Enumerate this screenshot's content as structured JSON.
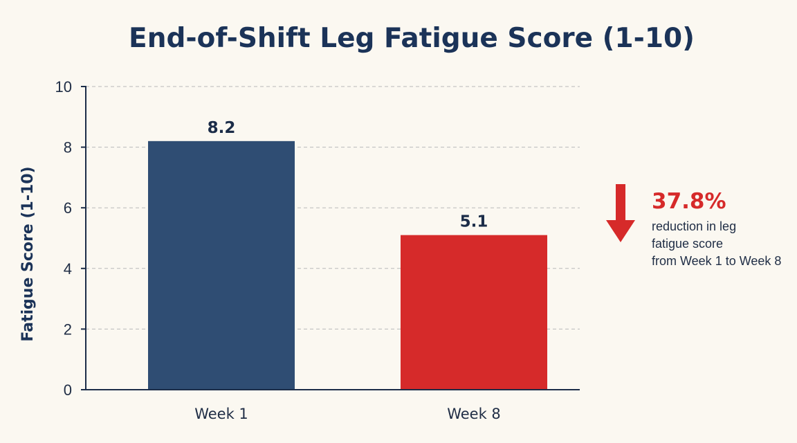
{
  "chart_data": {
    "type": "bar",
    "title": "End-of-Shift Leg Fatigue Score (1-10)",
    "xlabel": "",
    "ylabel": "Fatigue Score (1-10)",
    "categories": [
      "Week 1",
      "Week 8"
    ],
    "values": [
      8.2,
      5.1
    ],
    "data_labels": [
      "8.2",
      "5.1"
    ],
    "bar_colors": [
      "#2f4d73",
      "#d62a2a"
    ],
    "ylim": [
      0,
      10
    ],
    "yticks": [
      0,
      2,
      4,
      6,
      8,
      10
    ],
    "grid": true,
    "annotation": {
      "value": "37.8%",
      "lines": [
        "reduction in leg",
        "fatigue score",
        "from Week 1 to Week 8"
      ],
      "color": "#d62a2a",
      "icon": "down-arrow-icon"
    }
  }
}
